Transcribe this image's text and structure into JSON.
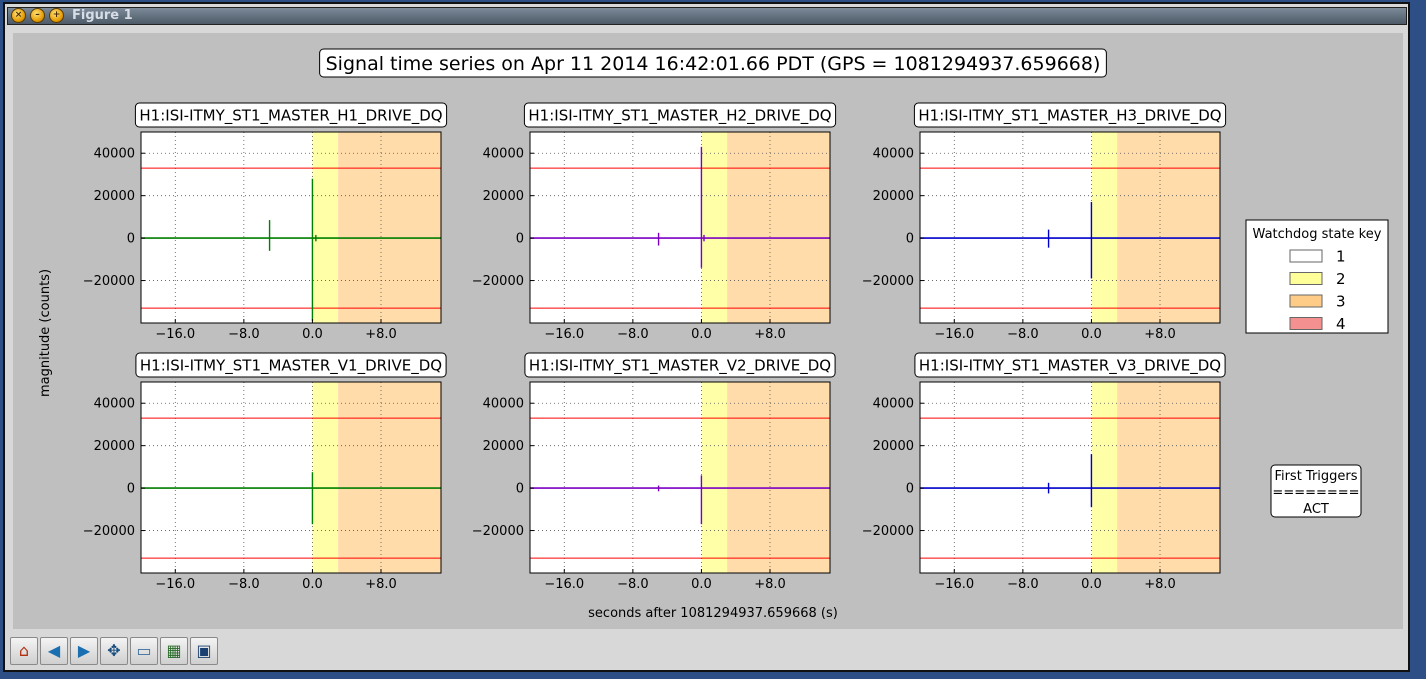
{
  "window": {
    "title": "Figure 1",
    "buttons": [
      "close-icon",
      "minimize-icon",
      "maximize-icon"
    ]
  },
  "toolbar": {
    "items": [
      {
        "name": "home-button",
        "icon": "home-icon"
      },
      {
        "name": "back-button",
        "icon": "back-arrow-icon"
      },
      {
        "name": "forward-button",
        "icon": "forward-arrow-icon"
      },
      {
        "name": "pan-button",
        "icon": "pan-icon"
      },
      {
        "name": "zoom-button",
        "icon": "zoom-rect-icon"
      },
      {
        "name": "subplots-button",
        "icon": "subplots-icon"
      },
      {
        "name": "save-button",
        "icon": "save-icon"
      }
    ]
  },
  "chart_data": {
    "type": "line",
    "title": "Signal time series on Apr 11 2014 16:42:01.66 PDT (GPS = 1081294937.659668)",
    "xlabel": "seconds after 1081294937.659668 (s)",
    "ylabel": "magnitude (counts)",
    "xlim": [
      -20,
      15
    ],
    "ylim": [
      -40000,
      50000
    ],
    "xticks": [
      -16,
      -8,
      0,
      8
    ],
    "xtick_labels": [
      "−16.0",
      "−8.0",
      "0.0",
      "+8.0"
    ],
    "yticks": [
      -20000,
      0,
      20000,
      40000
    ],
    "ytick_labels": [
      "−20000",
      "0",
      "20000",
      "40000"
    ],
    "grid": true,
    "threshold_lines": [
      33000,
      -33000
    ],
    "threshold_color": "#ff0000",
    "state_bands": [
      {
        "state": 2,
        "from": 0,
        "to": 3,
        "color": "#ffffa8"
      },
      {
        "state": 3,
        "from": 3,
        "to": 15,
        "color": "#ffdcaa"
      }
    ],
    "legend": {
      "title": "Watchdog state key",
      "placement": "right",
      "entries": [
        {
          "label": "1",
          "color": "#ffffff"
        },
        {
          "label": "2",
          "color": "#ffff99"
        },
        {
          "label": "3",
          "color": "#ffcc88"
        },
        {
          "label": "4",
          "color": "#f59090"
        }
      ]
    },
    "triggers_box": {
      "lines": [
        "First Triggers",
        "========",
        "ACT"
      ]
    },
    "panels": [
      {
        "title": "H1:ISI-ITMY_ST1_MASTER_H1_DRIVE_DQ",
        "color": "#007f00",
        "spikes": [
          {
            "x": -5.0,
            "max": 8500,
            "min": -6000
          },
          {
            "x": 0.0,
            "max": 28000,
            "min": -39000
          },
          {
            "x": 0.4,
            "max": 1500,
            "min": -1500
          }
        ]
      },
      {
        "title": "H1:ISI-ITMY_ST1_MASTER_H2_DRIVE_DQ",
        "color": "#7b00c4",
        "spikes": [
          {
            "x": -5.0,
            "max": 2500,
            "min": -3500
          },
          {
            "x": 0.0,
            "max": 43000,
            "min": -14000
          },
          {
            "x": 0.3,
            "max": 1500,
            "min": -1500
          }
        ]
      },
      {
        "title": "H1:ISI-ITMY_ST1_MASTER_H3_DRIVE_DQ",
        "color": "#0000cc",
        "spikes": [
          {
            "x": -5.0,
            "max": 4000,
            "min": -4500
          },
          {
            "x": 0.0,
            "max": 17000,
            "min": -19000
          }
        ]
      },
      {
        "title": "H1:ISI-ITMY_ST1_MASTER_V1_DRIVE_DQ",
        "color": "#007f00",
        "spikes": [
          {
            "x": 0.0,
            "max": 7500,
            "min": -17000
          }
        ]
      },
      {
        "title": "H1:ISI-ITMY_ST1_MASTER_V2_DRIVE_DQ",
        "color": "#7b00c4",
        "spikes": [
          {
            "x": -5.0,
            "max": 1200,
            "min": -1500
          },
          {
            "x": 0.0,
            "max": 6000,
            "min": -17000
          }
        ]
      },
      {
        "title": "H1:ISI-ITMY_ST1_MASTER_V3_DRIVE_DQ",
        "color": "#0000cc",
        "spikes": [
          {
            "x": -5.0,
            "max": 2500,
            "min": -2500
          },
          {
            "x": 0.0,
            "max": 16000,
            "min": -9000
          }
        ]
      }
    ]
  }
}
